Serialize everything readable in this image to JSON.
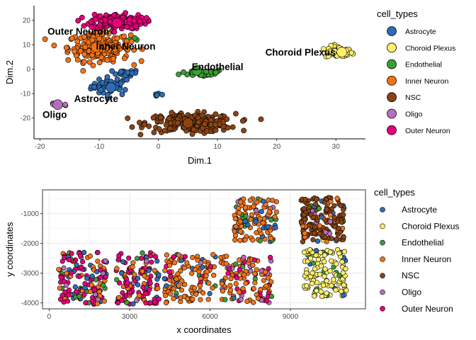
{
  "chart_data": [
    {
      "type": "scatter",
      "xlabel": "Dim.1",
      "ylabel": "Dim.2",
      "xlim": [
        -21,
        35
      ],
      "ylim": [
        -28.5,
        26
      ],
      "xticks": [
        -20,
        -10,
        0,
        10,
        20,
        30
      ],
      "yticks": [
        -20,
        -10,
        0,
        10,
        20
      ],
      "xtick_labels": [
        "-20",
        "-10",
        "0",
        "10",
        "20",
        "30"
      ],
      "ytick_labels": [
        "-20",
        "-10",
        "0",
        "10",
        "20"
      ],
      "grid": false,
      "legend": {
        "title": "cell_types",
        "placement": "right"
      },
      "clusters": [
        {
          "name": "Astrocyte",
          "center": [
            -8,
            -7
          ],
          "spread": [
            2.2,
            2.5
          ],
          "count": 45,
          "extra": [
            {
              "center": [
                -5.5,
                -1.5
              ],
              "spread": [
                1.5,
                0.8
              ],
              "count": 20
            },
            {
              "center": [
                0,
                -10.5
              ],
              "spread": [
                0.5,
                0.4
              ],
              "count": 6
            }
          ]
        },
        {
          "name": "Choroid Plexus",
          "center": [
            30.5,
            7
          ],
          "spread": [
            1.5,
            1.6
          ],
          "count": 55
        },
        {
          "name": "Endothelial",
          "center": [
            7.5,
            -1.5
          ],
          "spread": [
            2.5,
            1.0
          ],
          "count": 35,
          "extra": [
            {
              "center": [
                -4,
                13
              ],
              "spread": [
                1,
                1
              ],
              "count": 3
            }
          ]
        },
        {
          "name": "Inner Neuron",
          "center": [
            -10,
            9
          ],
          "spread": [
            3.5,
            3.8
          ],
          "count": 230
        },
        {
          "name": "NSC",
          "center": [
            5.5,
            -22
          ],
          "spread": [
            5.0,
            2.5
          ],
          "count": 220
        },
        {
          "name": "Oligo",
          "center": [
            -17,
            -14.5
          ],
          "spread": [
            1.0,
            0.8
          ],
          "count": 12
        },
        {
          "name": "Outer Neuron",
          "center": [
            -7,
            19.5
          ],
          "spread": [
            3.0,
            2.0
          ],
          "count": 190
        }
      ],
      "centroids": [
        {
          "name": "Outer Neuron",
          "x": -7,
          "y": 19,
          "label": "Outer Neuron",
          "label_x": -13.5,
          "label_y": 15.5
        },
        {
          "name": "Inner Neuron",
          "x": -10.5,
          "y": 9,
          "label": "Inner Neuron",
          "label_x": -5.5,
          "label_y": 9.5
        },
        {
          "name": "Choroid Plexus",
          "x": 31,
          "y": 7,
          "label": "Choroid Plexus",
          "label_x": 24,
          "label_y": 7
        },
        {
          "name": "Endothelial",
          "x": 6.5,
          "y": -0.5,
          "label": "Endothelial",
          "label_x": 10,
          "label_y": 1
        },
        {
          "name": "Astrocyte",
          "x": -8,
          "y": -7.5,
          "label": "Astrocyte",
          "label_x": -10.5,
          "label_y": -12
        },
        {
          "name": "Oligo",
          "x": -17,
          "y": -14.5,
          "label": "Oligo",
          "label_x": -17.5,
          "label_y": -18.5
        },
        {
          "name": "NSC",
          "x": 5,
          "y": -22,
          "label": "",
          "label_x": 0,
          "label_y": 0
        }
      ]
    },
    {
      "type": "scatter",
      "xlabel": "x coordinates",
      "ylabel": "y coordinates",
      "xlim": [
        -250,
        11800
      ],
      "ylim": [
        -4200,
        -200
      ],
      "xticks": [
        0,
        3000,
        6000,
        9000
      ],
      "yticks": [
        -1000,
        -2000,
        -3000,
        -4000
      ],
      "xtick_labels": [
        "0",
        "3000",
        "6000",
        "9000"
      ],
      "ytick_labels": [
        "-1000",
        "-2000",
        "-3000",
        "-4000"
      ],
      "grid": true,
      "legend": {
        "title": "cell_types",
        "placement": "right"
      },
      "regions": [
        {
          "x": [
            350,
            2150
          ],
          "y": [
            -4050,
            -2300
          ],
          "count": 150,
          "weights": {
            "Outer Neuron": 0.48,
            "Inner Neuron": 0.22,
            "Astrocyte": 0.18,
            "Endothelial": 0.07,
            "Oligo": 0.05
          }
        },
        {
          "name": "r2",
          "x": [
            2500,
            4100
          ],
          "y": [
            -4050,
            -2300
          ],
          "count": 130,
          "weights": {
            "Outer Neuron": 0.5,
            "Inner Neuron": 0.3,
            "Astrocyte": 0.08,
            "Endothelial": 0.07,
            "Oligo": 0.05
          }
        },
        {
          "name": "r3",
          "x": [
            4300,
            6200
          ],
          "y": [
            -4000,
            -2350
          ],
          "count": 120,
          "weights": {
            "Inner Neuron": 0.68,
            "Outer Neuron": 0.12,
            "Astrocyte": 0.12,
            "Endothelial": 0.05,
            "Oligo": 0.03
          }
        },
        {
          "name": "r4",
          "x": [
            6400,
            8300
          ],
          "y": [
            -4000,
            -2400
          ],
          "count": 120,
          "weights": {
            "Inner Neuron": 0.62,
            "Outer Neuron": 0.2,
            "Oligo": 0.08,
            "Astrocyte": 0.05,
            "Endothelial": 0.05
          }
        },
        {
          "name": "r5",
          "x": [
            6900,
            8500
          ],
          "y": [
            -1950,
            -450
          ],
          "count": 120,
          "weights": {
            "Inner Neuron": 0.72,
            "Astrocyte": 0.12,
            "Oligo": 0.08,
            "Endothelial": 0.08
          }
        },
        {
          "name": "r6",
          "x": [
            9400,
            11000
          ],
          "y": [
            -1950,
            -450
          ],
          "count": 170,
          "weights": {
            "NSC": 0.72,
            "Inner Neuron": 0.13,
            "Astrocyte": 0.06,
            "Oligo": 0.04,
            "Endothelial": 0.03,
            "Choroid Plexus": 0.02
          }
        },
        {
          "name": "r7",
          "x": [
            9500,
            11100
          ],
          "y": [
            -3800,
            -2200
          ],
          "count": 130,
          "weights": {
            "Choroid Plexus": 0.88,
            "Endothelial": 0.08,
            "Astrocyte": 0.04
          }
        }
      ]
    }
  ],
  "legend_entries": [
    {
      "name": "Astrocyte",
      "color": "#2e6db4"
    },
    {
      "name": "Choroid Plexus",
      "color": "#ffef6b"
    },
    {
      "name": "Endothelial",
      "color": "#3c9e36"
    },
    {
      "name": "Inner Neuron",
      "color": "#f27319"
    },
    {
      "name": "NSC",
      "color": "#8b4413"
    },
    {
      "name": "Oligo",
      "color": "#b56fbe"
    },
    {
      "name": "Outer Neuron",
      "color": "#e6007a"
    }
  ],
  "legend_title": "cell_types",
  "colors": {
    "outline": "#000000",
    "grid": "#ebebeb",
    "panel_border": "#333333"
  }
}
